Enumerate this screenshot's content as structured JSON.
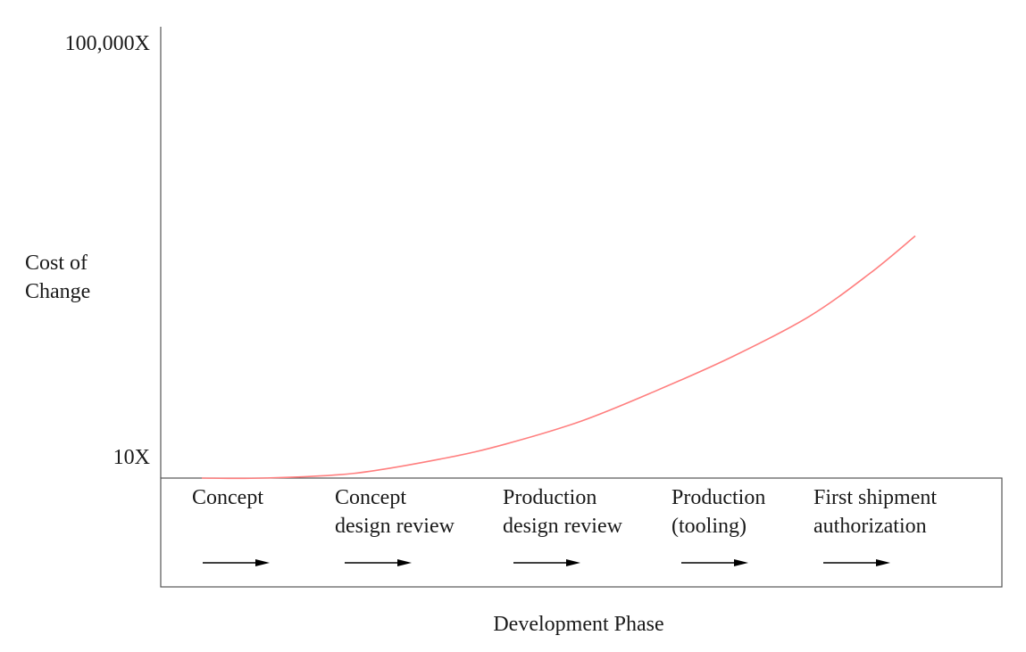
{
  "chart_data": {
    "type": "line",
    "title": "",
    "xlabel": "Development Phase",
    "ylabel": [
      "Cost of",
      "Change"
    ],
    "y_scale": "log",
    "y_ticks": [
      {
        "value": 10,
        "label": "10X"
      },
      {
        "value": 100000,
        "label": "100,000X"
      }
    ],
    "ylim": [
      10,
      100000
    ],
    "grid": false,
    "legend": "none",
    "phases": [
      {
        "lines": [
          "Concept"
        ]
      },
      {
        "lines": [
          "Concept",
          "design review"
        ]
      },
      {
        "lines": [
          "Production",
          "design review"
        ]
      },
      {
        "lines": [
          "Production",
          "(tooling)"
        ]
      },
      {
        "lines": [
          "First shipment",
          "authorization"
        ]
      }
    ],
    "curve_color": "#ff7f7f",
    "axis_color": "#555555",
    "arrow_color": "#000000",
    "series": [
      {
        "x": [
          0,
          0.4,
          1.0,
          1.6,
          2.0,
          2.5,
          3.0,
          3.5,
          4.0,
          4.4,
          4.7
        ],
        "y": [
          10,
          10,
          11,
          15,
          20,
          32,
          60,
          120,
          270,
          650,
          1400
        ]
      }
    ]
  }
}
